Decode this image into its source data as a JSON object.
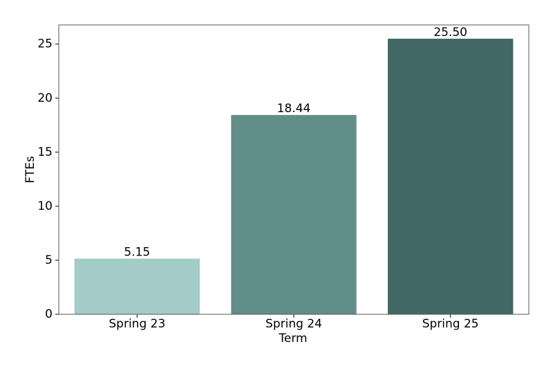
{
  "chart_data": {
    "type": "bar",
    "x_label": "Term",
    "y_label": "FTEs",
    "categories": [
      "Spring 23",
      "Spring 24",
      "Spring 25"
    ],
    "values": [
      5.15,
      18.44,
      25.5
    ],
    "value_labels": [
      "5.15",
      "18.44",
      "25.50"
    ],
    "colors": [
      "#a3cbc7",
      "#628e8a",
      "#426965"
    ],
    "ylim": [
      0,
      26.775
    ],
    "yticks": [
      0,
      5,
      10,
      15,
      20,
      25
    ],
    "grid": false
  }
}
